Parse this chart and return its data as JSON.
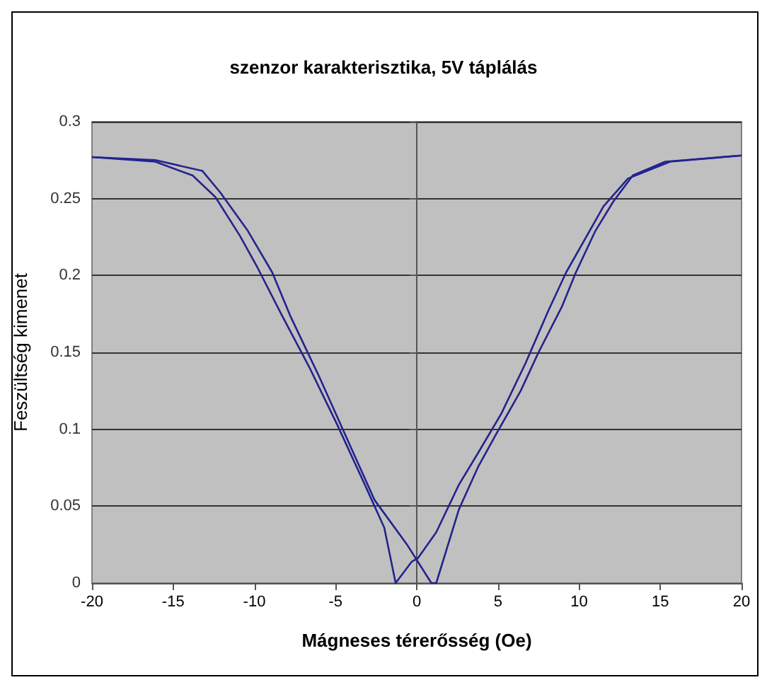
{
  "chart_data": {
    "type": "line",
    "title": "szenzor karakterisztika, 5V táplálás",
    "xlabel": "Mágneses térerősség (Oe)",
    "ylabel": "Feszültség kimenet",
    "series": [
      {
        "color": "#23238e",
        "x": [
          -20,
          -16.1,
          -13.2,
          -12.1,
          -10.4,
          -8.9,
          -7.8,
          -6.0,
          -4.3,
          -2.6,
          -0.6,
          0.9,
          1.2,
          2.6,
          3.8,
          4.9,
          6.4,
          7.5,
          8.95,
          9.8,
          11.0,
          12.1,
          13.3,
          15.3,
          20
        ],
        "values": [
          0.277,
          0.275,
          0.268,
          0.254,
          0.229,
          0.202,
          0.174,
          0.134,
          0.094,
          0.054,
          0.025,
          0.0,
          0.0,
          0.048,
          0.076,
          0.097,
          0.125,
          0.15,
          0.18,
          0.202,
          0.229,
          0.248,
          0.265,
          0.274,
          0.278
        ]
      },
      {
        "color": "#23238e",
        "x": [
          20,
          15.6,
          13.0,
          11.5,
          9.2,
          8.1,
          6.7,
          5.2,
          3.8,
          2.6,
          1.2,
          0.06,
          -0.3,
          -1.3,
          -2.0,
          -3.2,
          -4.9,
          -6.6,
          -8.3,
          -9.8,
          -10.9,
          -12.4,
          -13.8,
          -16.1,
          -20
        ],
        "values": [
          0.278,
          0.274,
          0.263,
          0.245,
          0.202,
          0.177,
          0.143,
          0.11,
          0.085,
          0.064,
          0.033,
          0.016,
          0.014,
          0.0,
          0.036,
          0.064,
          0.103,
          0.14,
          0.174,
          0.205,
          0.226,
          0.251,
          0.265,
          0.274,
          0.277
        ]
      }
    ],
    "xlim": [
      -20,
      20
    ],
    "xticks": [
      -20,
      -15,
      -10,
      -5,
      0,
      5,
      10,
      15,
      20
    ],
    "ylim": [
      0,
      0.3
    ],
    "yticks": [
      0,
      0.05,
      0.1,
      0.15,
      0.2,
      0.25,
      0.3
    ],
    "grid": "y",
    "marker": "none",
    "line_style": "solid"
  }
}
